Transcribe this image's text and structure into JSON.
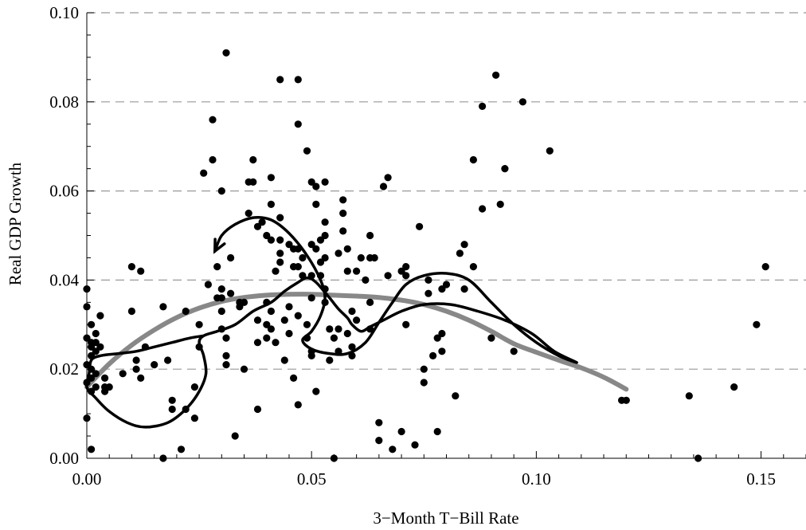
{
  "chart_data": {
    "type": "scatter",
    "title": "",
    "xlabel": "3−Month T−Bill Rate",
    "ylabel": "Real GDP Growth",
    "xlim": [
      0,
      0.16
    ],
    "ylim": [
      0,
      0.1
    ],
    "x_ticks": [
      0,
      0.05,
      0.1,
      0.15
    ],
    "x_tick_labels": [
      "0.00",
      "0.05",
      "0.10",
      "0.15"
    ],
    "y_ticks": [
      0,
      0.02,
      0.04,
      0.06,
      0.08,
      0.1
    ],
    "y_tick_labels": [
      "0.00",
      "0.02",
      "0.04",
      "0.06",
      "0.08",
      "0.10"
    ],
    "grid": "horizontal dashed",
    "legend": "none",
    "colors": {
      "points": "#000000",
      "loop_curve": "#000000",
      "smooth_fit": "#888888",
      "grid": "#999999"
    },
    "points": [
      [
        0.0,
        0.038
      ],
      [
        0.0,
        0.034
      ],
      [
        0.001,
        0.03
      ],
      [
        0.0,
        0.027
      ],
      [
        0.001,
        0.026
      ],
      [
        0.002,
        0.026
      ],
      [
        0.001,
        0.025
      ],
      [
        0.002,
        0.024
      ],
      [
        0.001,
        0.023
      ],
      [
        0.0,
        0.021
      ],
      [
        0.001,
        0.02
      ],
      [
        0.002,
        0.019
      ],
      [
        0.001,
        0.018
      ],
      [
        0.0,
        0.017
      ],
      [
        0.002,
        0.016
      ],
      [
        0.001,
        0.015
      ],
      [
        0.003,
        0.032
      ],
      [
        0.002,
        0.028
      ],
      [
        0.003,
        0.025
      ],
      [
        0.004,
        0.018
      ],
      [
        0.0,
        0.009
      ],
      [
        0.001,
        0.002
      ],
      [
        0.004,
        0.016
      ],
      [
        0.004,
        0.015
      ],
      [
        0.005,
        0.016
      ],
      [
        0.008,
        0.019
      ],
      [
        0.01,
        0.043
      ],
      [
        0.012,
        0.042
      ],
      [
        0.01,
        0.033
      ],
      [
        0.013,
        0.025
      ],
      [
        0.011,
        0.022
      ],
      [
        0.011,
        0.02
      ],
      [
        0.012,
        0.018
      ],
      [
        0.015,
        0.021
      ],
      [
        0.017,
        0.034
      ],
      [
        0.018,
        0.022
      ],
      [
        0.019,
        0.013
      ],
      [
        0.019,
        0.011
      ],
      [
        0.017,
        0.0
      ],
      [
        0.021,
        0.002
      ],
      [
        0.022,
        0.033
      ],
      [
        0.022,
        0.011
      ],
      [
        0.024,
        0.016
      ],
      [
        0.024,
        0.009
      ],
      [
        0.025,
        0.025
      ],
      [
        0.025,
        0.03
      ],
      [
        0.026,
        0.064
      ],
      [
        0.027,
        0.039
      ],
      [
        0.028,
        0.076
      ],
      [
        0.028,
        0.067
      ],
      [
        0.03,
        0.06
      ],
      [
        0.029,
        0.043
      ],
      [
        0.029,
        0.036
      ],
      [
        0.03,
        0.038
      ],
      [
        0.03,
        0.033
      ],
      [
        0.03,
        0.036
      ],
      [
        0.03,
        0.029
      ],
      [
        0.031,
        0.091
      ],
      [
        0.031,
        0.027
      ],
      [
        0.031,
        0.023
      ],
      [
        0.031,
        0.021
      ],
      [
        0.032,
        0.045
      ],
      [
        0.032,
        0.037
      ],
      [
        0.033,
        0.005
      ],
      [
        0.034,
        0.035
      ],
      [
        0.034,
        0.034
      ],
      [
        0.035,
        0.035
      ],
      [
        0.035,
        0.02
      ],
      [
        0.036,
        0.062
      ],
      [
        0.036,
        0.055
      ],
      [
        0.037,
        0.067
      ],
      [
        0.037,
        0.062
      ],
      [
        0.038,
        0.052
      ],
      [
        0.038,
        0.031
      ],
      [
        0.038,
        0.026
      ],
      [
        0.038,
        0.011
      ],
      [
        0.039,
        0.053
      ],
      [
        0.04,
        0.05
      ],
      [
        0.04,
        0.03
      ],
      [
        0.04,
        0.027
      ],
      [
        0.04,
        0.035
      ],
      [
        0.041,
        0.063
      ],
      [
        0.041,
        0.057
      ],
      [
        0.041,
        0.049
      ],
      [
        0.041,
        0.033
      ],
      [
        0.041,
        0.029
      ],
      [
        0.042,
        0.042
      ],
      [
        0.042,
        0.026
      ],
      [
        0.043,
        0.085
      ],
      [
        0.043,
        0.054
      ],
      [
        0.043,
        0.049
      ],
      [
        0.043,
        0.046
      ],
      [
        0.043,
        0.044
      ],
      [
        0.044,
        0.031
      ],
      [
        0.044,
        0.022
      ],
      [
        0.045,
        0.048
      ],
      [
        0.045,
        0.034
      ],
      [
        0.045,
        0.028
      ],
      [
        0.046,
        0.047
      ],
      [
        0.046,
        0.043
      ],
      [
        0.046,
        0.018
      ],
      [
        0.047,
        0.085
      ],
      [
        0.047,
        0.075
      ],
      [
        0.047,
        0.047
      ],
      [
        0.047,
        0.043
      ],
      [
        0.047,
        0.032
      ],
      [
        0.047,
        0.012
      ],
      [
        0.048,
        0.045
      ],
      [
        0.048,
        0.041
      ],
      [
        0.049,
        0.03
      ],
      [
        0.049,
        0.027
      ],
      [
        0.049,
        0.069
      ],
      [
        0.05,
        0.062
      ],
      [
        0.05,
        0.048
      ],
      [
        0.05,
        0.041
      ],
      [
        0.05,
        0.036
      ],
      [
        0.05,
        0.024
      ],
      [
        0.05,
        0.023
      ],
      [
        0.051,
        0.015
      ],
      [
        0.051,
        0.061
      ],
      [
        0.051,
        0.057
      ],
      [
        0.051,
        0.047
      ],
      [
        0.052,
        0.049
      ],
      [
        0.052,
        0.044
      ],
      [
        0.052,
        0.041
      ],
      [
        0.053,
        0.062
      ],
      [
        0.053,
        0.053
      ],
      [
        0.053,
        0.05
      ],
      [
        0.053,
        0.045
      ],
      [
        0.053,
        0.038
      ],
      [
        0.053,
        0.035
      ],
      [
        0.054,
        0.029
      ],
      [
        0.054,
        0.022
      ],
      [
        0.055,
        0.027
      ],
      [
        0.055,
        0.0
      ],
      [
        0.056,
        0.046
      ],
      [
        0.056,
        0.029
      ],
      [
        0.056,
        0.024
      ],
      [
        0.057,
        0.055
      ],
      [
        0.057,
        0.058
      ],
      [
        0.057,
        0.051
      ],
      [
        0.058,
        0.047
      ],
      [
        0.058,
        0.042
      ],
      [
        0.058,
        0.028
      ],
      [
        0.059,
        0.033
      ],
      [
        0.059,
        0.025
      ],
      [
        0.059,
        0.023
      ],
      [
        0.06,
        0.042
      ],
      [
        0.06,
        0.031
      ],
      [
        0.061,
        0.045
      ],
      [
        0.062,
        0.04
      ],
      [
        0.063,
        0.045
      ],
      [
        0.063,
        0.035
      ],
      [
        0.063,
        0.029
      ],
      [
        0.063,
        0.05
      ],
      [
        0.064,
        0.045
      ],
      [
        0.065,
        0.008
      ],
      [
        0.065,
        0.004
      ],
      [
        0.066,
        0.061
      ],
      [
        0.067,
        0.063
      ],
      [
        0.067,
        0.041
      ],
      [
        0.068,
        0.002
      ],
      [
        0.07,
        0.042
      ],
      [
        0.07,
        0.006
      ],
      [
        0.071,
        0.043
      ],
      [
        0.071,
        0.03
      ],
      [
        0.071,
        0.041
      ],
      [
        0.073,
        0.003
      ],
      [
        0.074,
        0.052
      ],
      [
        0.075,
        0.02
      ],
      [
        0.075,
        0.017
      ],
      [
        0.076,
        0.04
      ],
      [
        0.076,
        0.037
      ],
      [
        0.077,
        0.023
      ],
      [
        0.078,
        0.027
      ],
      [
        0.078,
        0.006
      ],
      [
        0.079,
        0.038
      ],
      [
        0.079,
        0.028
      ],
      [
        0.079,
        0.024
      ],
      [
        0.08,
        0.039
      ],
      [
        0.082,
        0.014
      ],
      [
        0.083,
        0.046
      ],
      [
        0.084,
        0.048
      ],
      [
        0.084,
        0.038
      ],
      [
        0.086,
        0.067
      ],
      [
        0.086,
        0.043
      ],
      [
        0.088,
        0.079
      ],
      [
        0.088,
        0.056
      ],
      [
        0.09,
        0.027
      ],
      [
        0.091,
        0.086
      ],
      [
        0.092,
        0.057
      ],
      [
        0.093,
        0.065
      ],
      [
        0.095,
        0.024
      ],
      [
        0.097,
        0.08
      ],
      [
        0.103,
        0.069
      ],
      [
        0.119,
        0.013
      ],
      [
        0.12,
        0.013
      ],
      [
        0.134,
        0.014
      ],
      [
        0.136,
        0.0
      ],
      [
        0.144,
        0.016
      ],
      [
        0.149,
        0.03
      ],
      [
        0.151,
        0.043
      ]
    ],
    "series": [
      {
        "type": "line",
        "color": "#000000",
        "points": [
          [
            0.0285,
            0.0465
          ],
          [
            0.03,
            0.05
          ],
          [
            0.033,
            0.0525
          ],
          [
            0.037,
            0.054
          ],
          [
            0.041,
            0.0535
          ],
          [
            0.045,
            0.0505
          ],
          [
            0.049,
            0.0455
          ],
          [
            0.052,
            0.04
          ],
          [
            0.053,
            0.036
          ],
          [
            0.052,
            0.032
          ],
          [
            0.05,
            0.0285
          ],
          [
            0.048,
            0.0265
          ],
          [
            0.05,
            0.0245
          ],
          [
            0.054,
            0.0235
          ],
          [
            0.058,
            0.0235
          ],
          [
            0.062,
            0.026
          ],
          [
            0.065,
            0.0305
          ],
          [
            0.068,
            0.035
          ],
          [
            0.071,
            0.039
          ],
          [
            0.075,
            0.041
          ],
          [
            0.08,
            0.0415
          ],
          [
            0.085,
            0.04
          ],
          [
            0.09,
            0.035
          ],
          [
            0.095,
            0.03
          ],
          [
            0.1,
            0.026
          ],
          [
            0.105,
            0.023
          ],
          [
            0.109,
            0.0215
          ],
          [
            0.104,
            0.024
          ],
          [
            0.099,
            0.028
          ],
          [
            0.093,
            0.031
          ],
          [
            0.087,
            0.033
          ],
          [
            0.081,
            0.0345
          ],
          [
            0.075,
            0.0345
          ],
          [
            0.07,
            0.033
          ],
          [
            0.066,
            0.031
          ],
          [
            0.063,
            0.0295
          ],
          [
            0.061,
            0.0285
          ],
          [
            0.059,
            0.03
          ],
          [
            0.058,
            0.0315
          ],
          [
            0.056,
            0.0335
          ],
          [
            0.054,
            0.036
          ],
          [
            0.051,
            0.0395
          ],
          [
            0.049,
            0.0405
          ],
          [
            0.047,
            0.0395
          ],
          [
            0.044,
            0.0375
          ],
          [
            0.041,
            0.035
          ],
          [
            0.037,
            0.033
          ],
          [
            0.033,
            0.03
          ],
          [
            0.029,
            0.0285
          ],
          [
            0.026,
            0.0275
          ],
          [
            0.025,
            0.026
          ],
          [
            0.026,
            0.023
          ],
          [
            0.0265,
            0.019
          ],
          [
            0.025,
            0.015
          ],
          [
            0.022,
            0.011
          ],
          [
            0.018,
            0.008
          ],
          [
            0.013,
            0.007
          ],
          [
            0.009,
            0.008
          ],
          [
            0.005,
            0.0105
          ],
          [
            0.002,
            0.0135
          ],
          [
            0.0,
            0.016
          ],
          [
            0.0005,
            0.019
          ],
          [
            0.001,
            0.022
          ],
          [
            0.003,
            0.023
          ],
          [
            0.007,
            0.0235
          ],
          [
            0.011,
            0.024
          ],
          [
            0.015,
            0.025
          ],
          [
            0.019,
            0.026
          ],
          [
            0.023,
            0.027
          ],
          [
            0.026,
            0.0275
          ]
        ]
      },
      {
        "type": "line",
        "color": "#888888",
        "points": [
          [
            0.0,
            0.016
          ],
          [
            0.005,
            0.0212
          ],
          [
            0.01,
            0.0254
          ],
          [
            0.015,
            0.0288
          ],
          [
            0.02,
            0.0316
          ],
          [
            0.025,
            0.0337
          ],
          [
            0.03,
            0.0352
          ],
          [
            0.035,
            0.0361
          ],
          [
            0.04,
            0.0366
          ],
          [
            0.045,
            0.0368
          ],
          [
            0.05,
            0.0368
          ],
          [
            0.055,
            0.0366
          ],
          [
            0.06,
            0.0364
          ],
          [
            0.065,
            0.0361
          ],
          [
            0.07,
            0.0355
          ],
          [
            0.075,
            0.0345
          ],
          [
            0.08,
            0.033
          ],
          [
            0.085,
            0.031
          ],
          [
            0.09,
            0.0285
          ],
          [
            0.095,
            0.0257
          ],
          [
            0.1,
            0.0238
          ],
          [
            0.105,
            0.022
          ],
          [
            0.11,
            0.0203
          ],
          [
            0.115,
            0.0182
          ],
          [
            0.12,
            0.0155
          ]
        ]
      }
    ],
    "arrow": {
      "from": [
        0.0295,
        0.0485
      ],
      "to": [
        0.0285,
        0.0465
      ]
    }
  }
}
